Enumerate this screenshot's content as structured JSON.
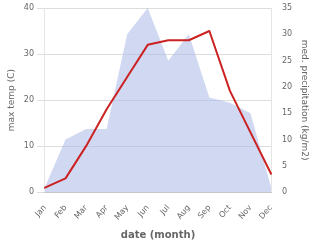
{
  "chart_data": {
    "type": "line",
    "xlabel": "date (month)",
    "ylabel": "max temp (C)",
    "y2label": "med. precipitation (kg/m2)",
    "categories": [
      "Jan",
      "Feb",
      "Mar",
      "Apr",
      "May",
      "Jun",
      "Jul",
      "Aug",
      "Sep",
      "Oct",
      "Nov",
      "Dec"
    ],
    "series": [
      {
        "type": "line",
        "color": "#cc2222",
        "values": [
          1,
          3,
          10,
          18,
          25,
          32,
          33,
          33,
          35,
          22,
          13,
          4
        ]
      },
      {
        "type": "area",
        "color": "#aab8e8",
        "axis": "y2",
        "values": [
          1,
          10,
          12,
          12,
          30,
          35,
          25,
          30,
          18,
          17,
          15,
          1
        ]
      }
    ],
    "ylim": [
      0,
      40
    ],
    "yticks": [
      0,
      10,
      20,
      30,
      40
    ],
    "y2lim": [
      0,
      35
    ],
    "y2ticks": [
      0,
      5,
      10,
      15,
      20,
      25,
      30,
      35
    ],
    "grid": true
  }
}
